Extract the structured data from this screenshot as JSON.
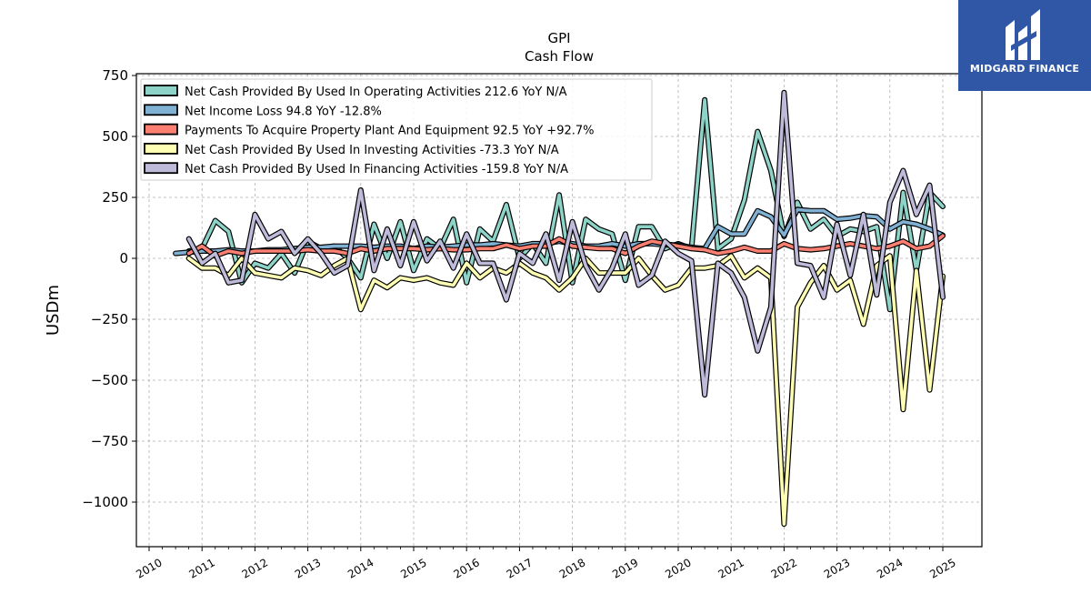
{
  "brand": {
    "name": "MIDGARD FINANCE",
    "color": "#2f57a6"
  },
  "chart_data": {
    "type": "line",
    "title": "GPI",
    "subtitle": "Cash Flow",
    "ylabel": "USDm",
    "xlabel": "",
    "ylim": [
      -1175,
      760
    ],
    "xlim": [
      2009.75,
      2025.75
    ],
    "grid": true,
    "legend_position": "top-left",
    "yticks": [
      750,
      500,
      250,
      0,
      -250,
      -500,
      -750,
      -1000
    ],
    "ytick_labels": [
      "750",
      "500",
      "250",
      "0",
      "−250",
      "−500",
      "−750",
      "−1000"
    ],
    "xticks": [
      2010,
      2011,
      2012,
      2013,
      2014,
      2015,
      2016,
      2017,
      2018,
      2019,
      2020,
      2021,
      2022,
      2023,
      2024,
      2025
    ],
    "xtick_labels": [
      "2010",
      "2011",
      "2012",
      "2013",
      "2014",
      "2015",
      "2016",
      "2017",
      "2018",
      "2019",
      "2020",
      "2021",
      "2022",
      "2023",
      "2024",
      "2025"
    ],
    "x": [
      2010.5,
      2010.75,
      2011.0,
      2011.25,
      2011.5,
      2011.75,
      2012.0,
      2012.25,
      2012.5,
      2012.75,
      2013.0,
      2013.25,
      2013.5,
      2013.75,
      2014.0,
      2014.25,
      2014.5,
      2014.75,
      2015.0,
      2015.25,
      2015.5,
      2015.75,
      2016.0,
      2016.25,
      2016.5,
      2016.75,
      2017.0,
      2017.25,
      2017.5,
      2017.75,
      2018.0,
      2018.25,
      2018.5,
      2018.75,
      2019.0,
      2019.25,
      2019.5,
      2019.75,
      2020.0,
      2020.25,
      2020.5,
      2020.75,
      2021.0,
      2021.25,
      2021.5,
      2021.75,
      2022.0,
      2022.25,
      2022.5,
      2022.75,
      2023.0,
      2023.25,
      2023.5,
      2023.75,
      2024.0,
      2024.25,
      2024.5,
      2024.75,
      2025.0
    ],
    "series": [
      {
        "name": "Net Cash Provided By Used In Operating Activities",
        "legend": "Net Cash Provided By Used In Operating Activities  212.6 YoY N/A",
        "color": "#8dd3c7",
        "values": [
          null,
          30,
          40,
          155,
          110,
          -100,
          -20,
          -40,
          20,
          -60,
          70,
          40,
          50,
          0,
          -80,
          140,
          0,
          150,
          -50,
          80,
          40,
          160,
          -100,
          120,
          70,
          220,
          0,
          60,
          -20,
          260,
          -100,
          160,
          120,
          100,
          -90,
          130,
          130,
          40,
          60,
          40,
          650,
          40,
          80,
          240,
          520,
          360,
          90,
          230,
          120,
          160,
          90,
          120,
          110,
          130,
          -210,
          270,
          -50,
          270,
          212.6
        ]
      },
      {
        "name": "Net Income Loss",
        "legend": "Net Income Loss  94.8 YoY -12.8%",
        "color": "#80b1d3",
        "values": [
          20,
          25,
          30,
          30,
          35,
          30,
          30,
          35,
          35,
          40,
          45,
          45,
          50,
          50,
          50,
          45,
          50,
          50,
          40,
          50,
          45,
          50,
          55,
          55,
          60,
          55,
          50,
          60,
          60,
          70,
          60,
          50,
          50,
          60,
          50,
          60,
          60,
          55,
          55,
          45,
          40,
          130,
          100,
          100,
          195,
          170,
          95,
          200,
          195,
          195,
          160,
          165,
          175,
          170,
          120,
          150,
          140,
          120,
          94.8
        ]
      },
      {
        "name": "Payments To Acquire Property Plant And Equipment",
        "legend": "Payments To Acquire Property Plant And Equipment  92.5 YoY +92.7%",
        "color": "#fb8072",
        "values": [
          null,
          20,
          50,
          10,
          30,
          20,
          30,
          30,
          30,
          30,
          35,
          30,
          30,
          20,
          40,
          30,
          40,
          40,
          40,
          35,
          40,
          35,
          35,
          40,
          40,
          55,
          40,
          50,
          50,
          80,
          50,
          45,
          40,
          40,
          20,
          50,
          70,
          60,
          50,
          40,
          35,
          20,
          30,
          45,
          30,
          30,
          60,
          40,
          35,
          40,
          50,
          60,
          50,
          40,
          50,
          70,
          40,
          50,
          92.5
        ]
      },
      {
        "name": "Net Cash Provided By Used In Investing Activities",
        "legend": "Net Cash Provided By Used In Investing Activities  -73.3 YoY N/A",
        "color": "#ffffb3",
        "values": [
          null,
          0,
          -40,
          -40,
          -70,
          0,
          -60,
          -70,
          -80,
          -40,
          -50,
          -70,
          -30,
          0,
          -210,
          -90,
          -120,
          -80,
          -90,
          -80,
          -100,
          -110,
          -20,
          -80,
          -40,
          -60,
          -20,
          -60,
          -80,
          -130,
          -80,
          0,
          -60,
          -60,
          -60,
          0,
          -70,
          -130,
          -110,
          -40,
          -40,
          -30,
          10,
          -80,
          -40,
          -80,
          -1090,
          -200,
          -100,
          -30,
          -130,
          -90,
          -270,
          -30,
          10,
          -620,
          -50,
          -540,
          -73.3
        ]
      },
      {
        "name": "Net Cash Provided By Used In Financing Activities",
        "legend": "Net Cash Provided By Used In Financing Activities  -159.8 YoY N/A",
        "color": "#bebada",
        "values": [
          null,
          80,
          -20,
          20,
          -100,
          -90,
          180,
          80,
          110,
          20,
          80,
          20,
          -60,
          -30,
          280,
          -50,
          120,
          -30,
          150,
          -10,
          70,
          -40,
          100,
          -20,
          -20,
          -170,
          20,
          -20,
          100,
          -90,
          150,
          -30,
          -130,
          -40,
          100,
          -110,
          -70,
          70,
          20,
          -10,
          -560,
          -20,
          -60,
          -160,
          -380,
          -200,
          680,
          -20,
          -30,
          -160,
          140,
          -70,
          180,
          -150,
          230,
          360,
          180,
          300,
          -159.8
        ]
      }
    ]
  }
}
